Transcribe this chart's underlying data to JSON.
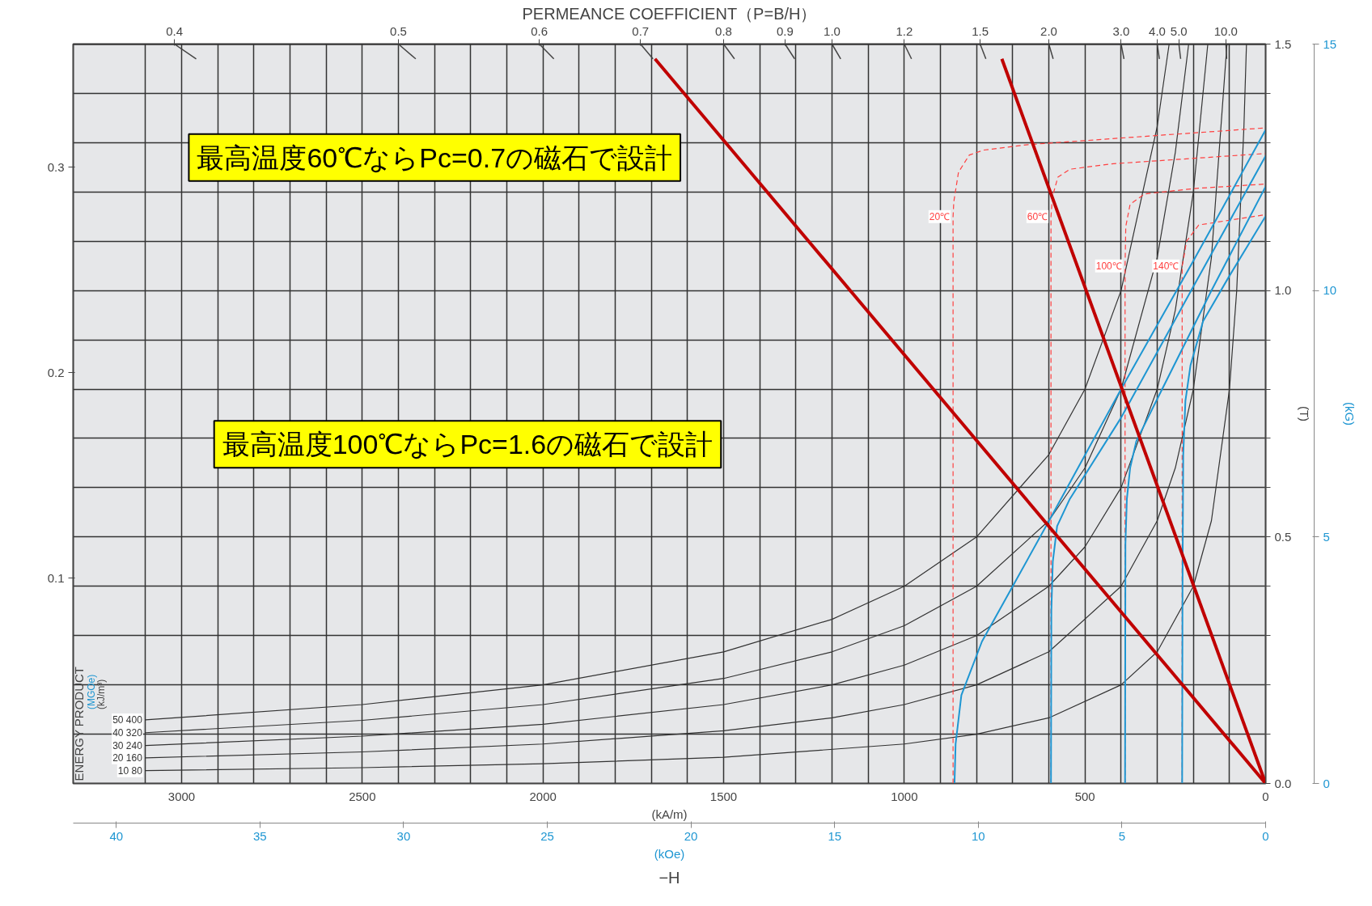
{
  "chart_data": {
    "type": "line",
    "xlabel": "(kA/m)",
    "title": "PERMEANCE COEFFICIENT（P=B/H）",
    "x2label": "(kOe)",
    "ylabel": "(T)",
    "y2label": "(kG)",
    "xlim": [
      3300,
      0
    ],
    "xticks": [
      {
        "value": 3100,
        "label": null
      },
      {
        "value": 3000,
        "label": "3000"
      },
      {
        "value": 2900,
        "label": null
      },
      {
        "value": 2800,
        "label": null
      },
      {
        "value": 2700,
        "label": null
      },
      {
        "value": 2600,
        "label": null
      },
      {
        "value": 2500,
        "label": "2500"
      },
      {
        "value": 2400,
        "label": null
      },
      {
        "value": 2300,
        "label": null
      },
      {
        "value": 2200,
        "label": null
      },
      {
        "value": 2100,
        "label": null
      },
      {
        "value": 2000,
        "label": "2000"
      },
      {
        "value": 1900,
        "label": null
      },
      {
        "value": 1800,
        "label": null
      },
      {
        "value": 1700,
        "label": null
      },
      {
        "value": 1600,
        "label": null
      },
      {
        "value": 1500,
        "label": "1500"
      },
      {
        "value": 1400,
        "label": null
      },
      {
        "value": 1300,
        "label": null
      },
      {
        "value": 1200,
        "label": null
      },
      {
        "value": 1100,
        "label": null
      },
      {
        "value": 1000,
        "label": "1000"
      },
      {
        "value": 900,
        "label": null
      },
      {
        "value": 800,
        "label": null
      },
      {
        "value": 700,
        "label": null
      },
      {
        "value": 600,
        "label": null
      },
      {
        "value": 500,
        "label": "500"
      },
      {
        "value": 400,
        "label": null
      },
      {
        "value": 300,
        "label": null
      },
      {
        "value": 200,
        "label": null
      },
      {
        "value": 100,
        "label": null
      },
      {
        "value": 0,
        "label": "0"
      }
    ],
    "x2lim": [
      41.5,
      0
    ],
    "x2ticks": [
      40,
      35,
      30,
      25,
      20,
      15,
      10,
      5,
      0
    ],
    "ref_lines": [
      {
        "axis": "y",
        "value": 1.5,
        "color": "#333333"
      }
    ],
    "ylim": [
      0,
      1.5
    ],
    "yticks": [
      {
        "value": 0,
        "label": "0.0"
      },
      {
        "value": 0.1,
        "label": null
      },
      {
        "value": 0.2,
        "label": null
      },
      {
        "value": 0.3,
        "label": null
      },
      {
        "value": 0.4,
        "label": null
      },
      {
        "value": 0.5,
        "label": "0.5"
      },
      {
        "value": 0.6,
        "label": null
      },
      {
        "value": 0.7,
        "label": null
      },
      {
        "value": 0.8,
        "label": null
      },
      {
        "value": 0.9,
        "label": null
      },
      {
        "value": 1.0,
        "label": "1.0"
      },
      {
        "value": 1.1,
        "label": null
      },
      {
        "value": 1.2,
        "label": null
      },
      {
        "value": 1.3,
        "label": null
      },
      {
        "value": 1.4,
        "label": null
      },
      {
        "value": 1.5,
        "label": "1.5"
      }
    ],
    "y2lim": [
      0,
      15
    ],
    "y2ticks": [
      0,
      5,
      10,
      15
    ],
    "y3lim": [
      0,
      0.36
    ],
    "y3ticks": [
      0.1,
      0.2,
      0.3
    ],
    "grid": true,
    "annotations": [
      "ENERGY PRODUCT",
      "(MGOe)",
      "(kJ/m³)",
      "−H",
      "最高温度60℃ならPc=0.7の磁石で設計",
      "最高温度100℃ならPc=1.6の磁石で設計",
      {
        "text": "0.4",
        "x": 3020,
        "y": 1.5
      },
      {
        "text": "0.5",
        "x": 2400,
        "y": 1.5
      },
      {
        "text": "0.6",
        "x": 2010,
        "y": 1.5
      },
      {
        "text": "0.7",
        "x": 1730,
        "y": 1.5
      },
      {
        "text": "0.8",
        "x": 1500,
        "y": 1.5
      },
      {
        "text": "0.9",
        "x": 1330,
        "y": 1.5
      },
      {
        "text": "1.0",
        "x": 1200,
        "y": 1.5
      },
      {
        "text": "1.2",
        "x": 1000,
        "y": 1.5
      },
      {
        "text": "1.5",
        "x": 790,
        "y": 1.5
      },
      {
        "text": "2.0",
        "x": 600,
        "y": 1.5
      },
      {
        "text": "3.0",
        "x": 400,
        "y": 1.5
      },
      {
        "text": "4.0",
        "x": 300,
        "y": 1.5
      },
      {
        "text": "5.0",
        "x": 240,
        "y": 1.5
      },
      {
        "text": "10.0",
        "x": 110,
        "y": 1.5
      }
    ],
    "series": [
      {
        "name": "50 400",
        "color": "#333333",
        "x": [
          3100,
          2500,
          2000,
          1500,
          1200,
          1000,
          800,
          600,
          500,
          400,
          300,
          267
        ],
        "values": [
          0.129,
          0.16,
          0.2,
          0.267,
          0.333,
          0.4,
          0.5,
          0.667,
          0.8,
          1.0,
          1.333,
          1.5
        ]
      },
      {
        "name": "40 320",
        "color": "#333333",
        "x": [
          3100,
          2500,
          2000,
          1500,
          1200,
          1000,
          800,
          600,
          500,
          400,
          300,
          250,
          213
        ],
        "values": [
          0.103,
          0.128,
          0.16,
          0.213,
          0.267,
          0.32,
          0.4,
          0.533,
          0.64,
          0.8,
          1.067,
          1.28,
          1.5
        ]
      },
      {
        "name": "30 240",
        "color": "#333333",
        "x": [
          3100,
          2500,
          2000,
          1500,
          1200,
          1000,
          800,
          600,
          500,
          400,
          300,
          250,
          200,
          160
        ],
        "values": [
          0.077,
          0.096,
          0.12,
          0.16,
          0.2,
          0.24,
          0.3,
          0.4,
          0.48,
          0.6,
          0.8,
          0.96,
          1.2,
          1.5
        ]
      },
      {
        "name": "20 160",
        "color": "#333333",
        "x": [
          3100,
          2500,
          2000,
          1500,
          1200,
          1000,
          800,
          600,
          400,
          300,
          250,
          200,
          150,
          107
        ],
        "values": [
          0.052,
          0.064,
          0.08,
          0.107,
          0.133,
          0.16,
          0.2,
          0.267,
          0.4,
          0.533,
          0.64,
          0.8,
          1.067,
          1.5
        ]
      },
      {
        "name": "10 80",
        "color": "#333333",
        "x": [
          3100,
          2500,
          2000,
          1500,
          1000,
          800,
          600,
          400,
          300,
          200,
          150,
          100,
          80,
          60,
          53
        ],
        "values": [
          0.026,
          0.032,
          0.04,
          0.053,
          0.08,
          0.1,
          0.133,
          0.2,
          0.267,
          0.4,
          0.533,
          0.8,
          1.0,
          1.333,
          1.5
        ]
      },
      {
        "name": "20℃",
        "color": "#ff4040",
        "line_style": "dashed",
        "x": [
          865,
          865,
          863,
          850,
          820,
          780,
          658,
          312,
          0
        ],
        "values": [
          0,
          1.15,
          1.18,
          1.24,
          1.275,
          1.285,
          1.296,
          1.314,
          1.33
        ]
      },
      {
        "name": "60℃",
        "color": "#ff4040",
        "line_style": "dashed",
        "x": [
          594,
          594,
          590,
          575,
          542,
          427,
          0
        ],
        "values": [
          0,
          1.15,
          1.19,
          1.23,
          1.246,
          1.257,
          1.278
        ]
      },
      {
        "name": "100℃",
        "color": "#ff4040",
        "line_style": "dashed",
        "x": [
          389,
          389,
          387,
          375,
          335,
          196,
          0
        ],
        "values": [
          0,
          1.05,
          1.13,
          1.175,
          1.196,
          1.207,
          1.216
        ]
      },
      {
        "name": "140℃",
        "color": "#ff4040",
        "line_style": "dashed",
        "x": [
          231,
          231,
          228,
          219,
          185,
          0
        ],
        "values": [
          0,
          1.05,
          1.06,
          1.1,
          1.133,
          1.154
        ]
      },
      {
        "color": "#1e96d2",
        "x": [
          0,
          200,
          400,
          600,
          700,
          785,
          842,
          858,
          861
        ],
        "values": [
          1.326,
          1.06,
          0.8,
          0.532,
          0.4,
          0.288,
          0.179,
          0.08,
          0
        ]
      },
      {
        "color": "#1e96d2",
        "x": [
          0,
          200,
          400,
          542,
          577,
          589,
          593,
          594
        ],
        "values": [
          1.273,
          1.008,
          0.742,
          0.577,
          0.522,
          0.45,
          0.35,
          0
        ]
      },
      {
        "color": "#1e96d2",
        "x": [
          0,
          150,
          300,
          358,
          375,
          384,
          388,
          389
        ],
        "values": [
          1.211,
          1.0,
          0.78,
          0.694,
          0.64,
          0.577,
          0.486,
          0
        ]
      },
      {
        "color": "#1e96d2",
        "x": [
          0,
          100,
          173,
          208,
          222,
          228,
          230,
          231
        ],
        "values": [
          1.151,
          1.03,
          0.938,
          0.848,
          0.776,
          0.667,
          0.4,
          0
        ]
      },
      {
        "color": "#c00000",
        "x": [
          0,
          1690
        ],
        "values": [
          0,
          1.47
        ]
      },
      {
        "color": "#c00000",
        "x": [
          0,
          730
        ],
        "values": [
          0,
          1.47
        ]
      }
    ]
  }
}
